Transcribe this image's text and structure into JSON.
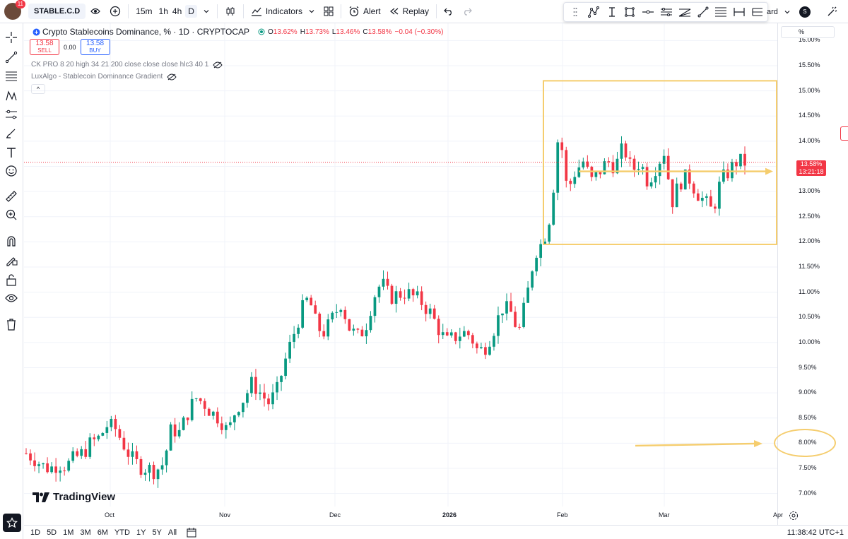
{
  "topbar": {
    "notification_count": "11",
    "symbol": "STABLE.C.D",
    "timeframes": [
      "15m",
      "1h",
      "4h",
      "D"
    ],
    "active_timeframe": "D",
    "indicators_label": "Indicators",
    "alert_label": "Alert",
    "replay_label": "Replay",
    "layout_label_partial": "ard",
    "user_initial": "S"
  },
  "legend": {
    "title": "Crypto Stablecoins Dominance, % · 1D · CRYPTOCAP",
    "o_label": "O",
    "o_value": "13.62%",
    "h_label": "H",
    "h_value": "13.73%",
    "l_label": "L",
    "l_value": "13.46%",
    "c_label": "C",
    "c_value": "13.58%",
    "change": "−0.04 (−0.30%)",
    "sell_price": "13.58",
    "sell_label": "SELL",
    "spread": "0.00",
    "buy_price": "13.58",
    "buy_label": "BUY",
    "indicator_1": "CK PRO 8 20 high 34 21 200 close close close hlc3 40 1",
    "indicator_2": "LuxAlgo - Stablecoin Dominance Gradient",
    "collapse_symbol": "^"
  },
  "price_axis": {
    "unit": "%",
    "current_price": "13.58%",
    "countdown": "13:21:18"
  },
  "time_axis": {
    "labels": [
      "Oct",
      "Nov",
      "Dec",
      "2026",
      "Feb",
      "Mar",
      "Apr"
    ]
  },
  "bottombar": {
    "ranges": [
      "1D",
      "5D",
      "1M",
      "3M",
      "6M",
      "YTD",
      "1Y",
      "5Y",
      "All"
    ],
    "clock": "11:38:42 UTC+1"
  },
  "branding": {
    "logo_text": "TradingView"
  },
  "colors": {
    "up": "#089981",
    "down": "#f23645",
    "annotation": "#f5cd6e",
    "grid": "#f0f3fa"
  },
  "chart_data": {
    "type": "candlestick",
    "ylabel": "%",
    "ylim": [
      6.7,
      16.3
    ],
    "yticks": [
      "7.00%",
      "7.50%",
      "8.00%",
      "8.50%",
      "9.00%",
      "9.50%",
      "10.00%",
      "10.50%",
      "11.00%",
      "11.50%",
      "12.00%",
      "12.50%",
      "13.00%",
      "13.50%",
      "14.00%",
      "14.50%",
      "15.00%",
      "15.50%",
      "16.00%"
    ],
    "ytick_values": [
      7.0,
      7.5,
      8.0,
      8.5,
      9.0,
      9.5,
      10.0,
      10.5,
      11.0,
      11.5,
      12.0,
      12.5,
      13.0,
      13.5,
      14.0,
      14.5,
      15.0,
      15.5,
      16.0
    ],
    "close_path": [
      7.8,
      7.7,
      7.55,
      7.5,
      7.6,
      7.55,
      7.7,
      7.8,
      8.0,
      8.1,
      8.35,
      8.3,
      8.0,
      7.7,
      7.55,
      7.5,
      7.45,
      7.6,
      8.3,
      8.2,
      8.6,
      8.9,
      8.8,
      8.6,
      8.5,
      8.2,
      8.7,
      8.9,
      9.2,
      9.0,
      8.8,
      9.0,
      9.6,
      10.1,
      10.6,
      10.9,
      10.3,
      10.2,
      10.5,
      10.8,
      10.3,
      10.1,
      10.3,
      10.9,
      11.2,
      10.9,
      10.95,
      11.0,
      10.9,
      10.8,
      10.6,
      10.3,
      10.0,
      10.1,
      10.2,
      10.15,
      9.8,
      9.95,
      10.3,
      10.7,
      10.6,
      10.2,
      10.9,
      11.8,
      12.0,
      12.6,
      14.3,
      13.0,
      13.4,
      13.6,
      13.2,
      13.4,
      13.6,
      13.5,
      13.9,
      13.4,
      13.6,
      13.2,
      13.5,
      13.8,
      12.8,
      13.2,
      13.3,
      13.0,
      12.8,
      12.6,
      13.2,
      13.4,
      13.6,
      13.58
    ],
    "annotations": {
      "box_range": [
        11.95,
        15.2
      ],
      "arrow_level": 13.4,
      "lower_arrow_level": 7.95,
      "circled_label": "8.00%"
    },
    "last_price": 13.58
  }
}
